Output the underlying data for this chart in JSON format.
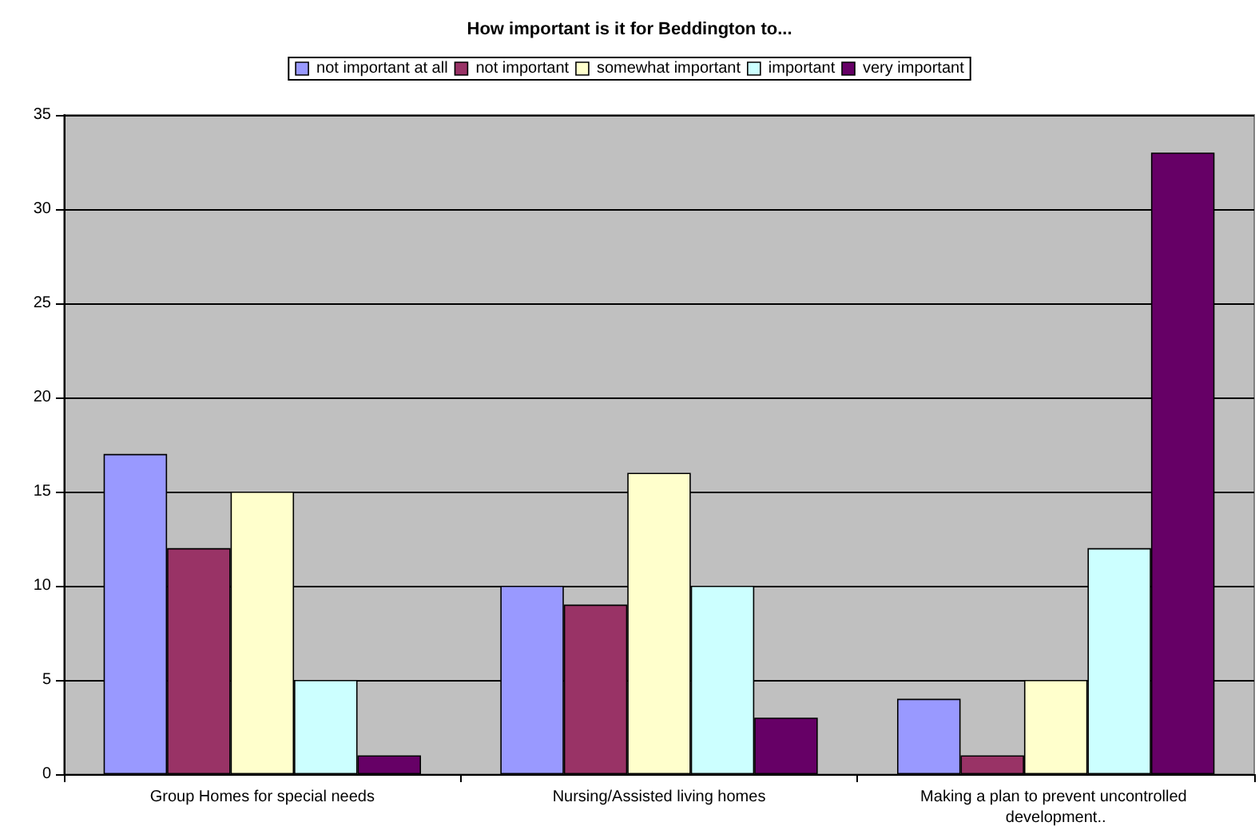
{
  "chart_data": {
    "type": "bar",
    "title": "How important is it for Beddington to...",
    "categories": [
      "Group Homes for special needs",
      "Nursing/Assisted living homes",
      "Making a plan to prevent uncontrolled development.."
    ],
    "series": [
      {
        "name": "not important at all",
        "color": "#9999ff",
        "values": [
          17,
          10,
          4
        ]
      },
      {
        "name": "not important",
        "color": "#993366",
        "values": [
          12,
          9,
          1
        ]
      },
      {
        "name": "somewhat important",
        "color": "#ffffcc",
        "values": [
          15,
          16,
          5
        ]
      },
      {
        "name": "important",
        "color": "#ccffff",
        "values": [
          5,
          10,
          12
        ]
      },
      {
        "name": "very important",
        "color": "#660066",
        "values": [
          1,
          3,
          33
        ]
      }
    ],
    "ylim": [
      0,
      35
    ],
    "yticks": [
      0,
      5,
      10,
      15,
      20,
      25,
      30,
      35
    ],
    "grid": "y",
    "legend": "top"
  }
}
